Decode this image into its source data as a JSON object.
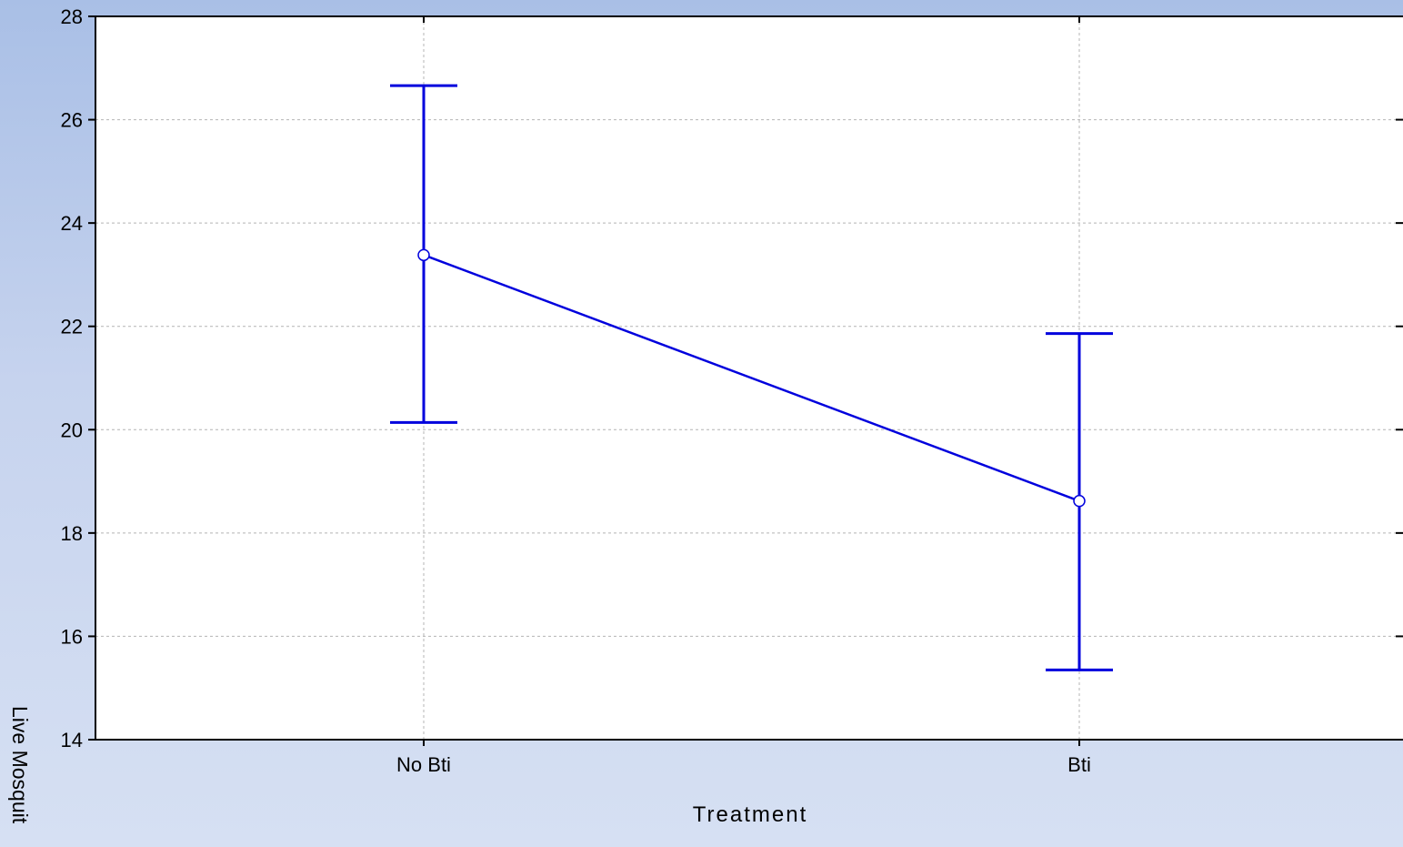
{
  "chart_data": {
    "type": "line",
    "xlabel": "Treatment",
    "ylabel": "Live Mosquit",
    "categories": [
      "No Bti",
      "Bti"
    ],
    "series": [
      {
        "values": [
          23.38,
          18.62
        ],
        "error_low": [
          20.14,
          15.35
        ],
        "error_high": [
          26.66,
          21.86
        ]
      }
    ],
    "ylim": [
      14,
      28
    ],
    "yticks": [
      14,
      16,
      18,
      20,
      22,
      24,
      26,
      28
    ],
    "grid": true,
    "colors": {
      "series": "#0000dd",
      "grid": "#b4b4b4",
      "axis": "#000000",
      "plot_background": "#ffffff"
    }
  }
}
